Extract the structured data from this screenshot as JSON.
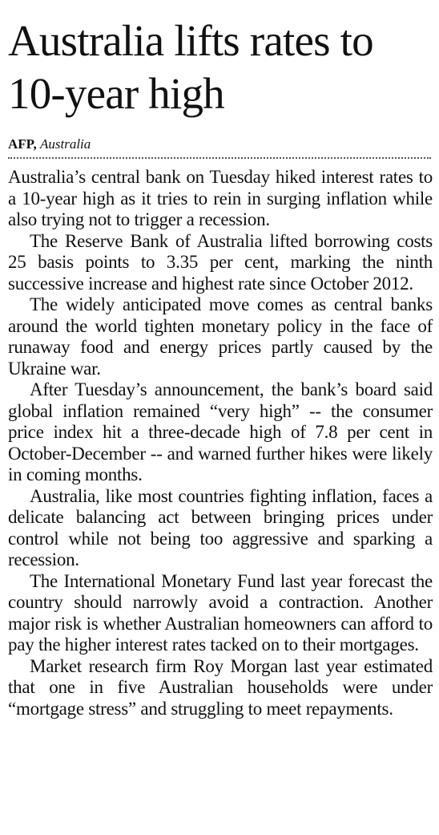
{
  "header": {
    "title": "Australia lifts rates to 10-year high",
    "agency": "AFP,",
    "location": "Australia"
  },
  "paragraphs": [
    "Australia’s central bank on Tuesday hiked interest rates to a 10-year high as it tries to rein in surging inflation while also trying not to trigger a recession.",
    "The Reserve Bank of Australia lifted borrowing costs 25 basis points to 3.35 per cent, marking the ninth successive increase and highest rate since October 2012.",
    "The widely anticipated move comes as central banks around the world tighten monetary policy in the face of runaway food and energy prices partly caused by the Ukraine war.",
    "After Tuesday’s announcement, the bank’s board said global inflation remained “very high” -- the consumer price index hit a three-decade high of 7.8 per cent in October-December -- and warned further hikes were likely in coming months.",
    "Australia, like most countries fighting inflation, faces a delicate balancing act between bringing prices under control while not being too aggressive and sparking a recession.",
    "The International Monetary Fund last year forecast the country should narrowly avoid a contraction. Another major risk is whether Australian homeowners can afford to pay the higher interest rates tacked on to their mortgages.",
    "Market research firm Roy Morgan last year estimated that one in five Australian households were under “mortgage stress” and struggling to meet repayments."
  ]
}
